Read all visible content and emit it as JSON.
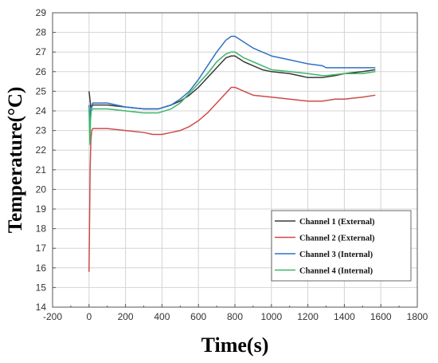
{
  "chart_data": {
    "type": "line",
    "title": "",
    "xlabel": "Time(s)",
    "ylabel": "Temperature(°C)",
    "xlim": [
      -200,
      1800
    ],
    "ylim": [
      14,
      29
    ],
    "x_ticks": [
      -200,
      0,
      200,
      400,
      600,
      800,
      1000,
      1200,
      1400,
      1600,
      1800
    ],
    "y_ticks": [
      14,
      15,
      16,
      17,
      18,
      19,
      20,
      21,
      22,
      23,
      24,
      25,
      26,
      27,
      28,
      29
    ],
    "grid": true,
    "legend_position": "bottom-right",
    "series": [
      {
        "name": "Channel 1 (External)",
        "color": "#3a3a3a",
        "x": [
          0,
          5,
          10,
          20,
          40,
          100,
          200,
          300,
          380,
          450,
          500,
          550,
          600,
          650,
          700,
          750,
          780,
          800,
          850,
          900,
          950,
          1000,
          1100,
          1200,
          1280,
          1350,
          1400,
          1500,
          1570
        ],
        "y": [
          25.0,
          24.6,
          24.1,
          24.3,
          24.3,
          24.3,
          24.2,
          24.1,
          24.1,
          24.3,
          24.5,
          24.8,
          25.2,
          25.7,
          26.2,
          26.7,
          26.8,
          26.8,
          26.5,
          26.3,
          26.1,
          26.0,
          25.9,
          25.7,
          25.7,
          25.8,
          25.9,
          26.0,
          26.1
        ]
      },
      {
        "name": "Channel 2 (External)",
        "color": "#cc4b4b",
        "x": [
          0,
          3,
          6,
          10,
          15,
          20,
          40,
          100,
          200,
          300,
          350,
          400,
          450,
          500,
          550,
          600,
          650,
          700,
          750,
          780,
          800,
          850,
          900,
          1000,
          1100,
          1200,
          1280,
          1350,
          1400,
          1500,
          1570
        ],
        "y": [
          15.8,
          18.5,
          21.0,
          22.5,
          23.0,
          23.1,
          23.1,
          23.1,
          23.0,
          22.9,
          22.8,
          22.8,
          22.9,
          23.0,
          23.2,
          23.5,
          23.9,
          24.4,
          24.9,
          25.2,
          25.2,
          25.0,
          24.8,
          24.7,
          24.6,
          24.5,
          24.5,
          24.6,
          24.6,
          24.7,
          24.8
        ]
      },
      {
        "name": "Channel 3 (Internal)",
        "color": "#2f72c4",
        "x": [
          0,
          5,
          8,
          12,
          20,
          40,
          100,
          200,
          300,
          380,
          450,
          500,
          550,
          600,
          650,
          700,
          750,
          780,
          800,
          850,
          900,
          950,
          1000,
          1100,
          1200,
          1280,
          1300,
          1400,
          1500,
          1570
        ],
        "y": [
          24.3,
          23.2,
          24.0,
          24.2,
          24.4,
          24.4,
          24.4,
          24.2,
          24.1,
          24.1,
          24.3,
          24.6,
          25.0,
          25.6,
          26.3,
          27.0,
          27.6,
          27.8,
          27.8,
          27.5,
          27.2,
          27.0,
          26.8,
          26.6,
          26.4,
          26.3,
          26.2,
          26.2,
          26.2,
          26.2
        ]
      },
      {
        "name": "Channel 4 (Internal)",
        "color": "#3cb66a",
        "x": [
          0,
          5,
          8,
          12,
          20,
          40,
          100,
          200,
          300,
          380,
          450,
          500,
          550,
          600,
          650,
          700,
          750,
          780,
          800,
          850,
          900,
          950,
          1000,
          1100,
          1200,
          1280,
          1300,
          1400,
          1500,
          1570
        ],
        "y": [
          24.2,
          22.3,
          23.5,
          24.0,
          24.1,
          24.1,
          24.1,
          24.0,
          23.9,
          23.9,
          24.1,
          24.4,
          24.9,
          25.4,
          25.9,
          26.5,
          26.9,
          27.0,
          27.0,
          26.7,
          26.5,
          26.3,
          26.1,
          26.0,
          25.9,
          25.8,
          25.8,
          25.9,
          25.9,
          26.0
        ]
      }
    ]
  }
}
